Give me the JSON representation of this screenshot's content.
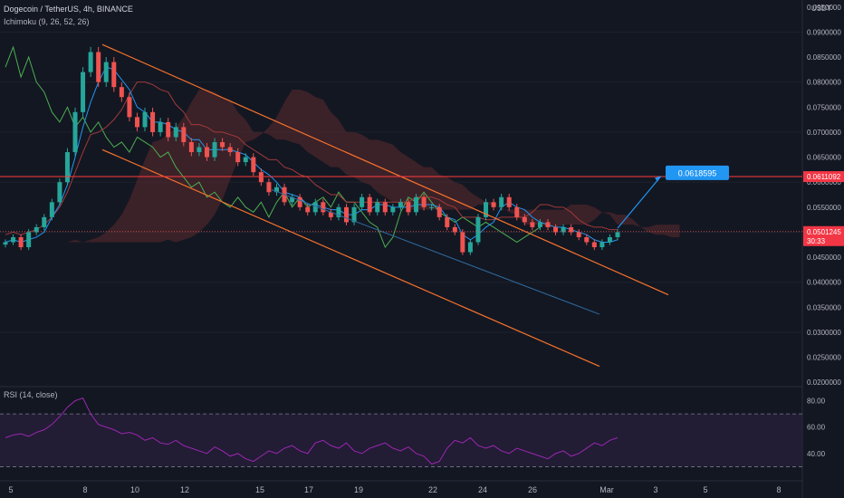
{
  "header": {
    "symbol_line": "Dogecoin / TetherUS, 4h, BINANCE",
    "indicator_line": "Ichimoku (9, 26, 52, 26)",
    "rsi_label": "RSI (14, close)"
  },
  "colors": {
    "background": "#131722",
    "up": "#26a69a",
    "down": "#ef5350",
    "channel": "#f7722c",
    "target": "#2196f3",
    "resistance": "#ff3b3b",
    "rsi_line": "#9c27b0",
    "rsi_band": "#2a1f3d"
  },
  "chart_data": [
    {
      "type": "candlestick",
      "price_axis_unit": "USDT",
      "ylim": [
        0.0195,
        0.0955
      ],
      "y_ticks": [
        "0.0950000",
        "0.0900000",
        "0.0850000",
        "0.0800000",
        "0.0750000",
        "0.0700000",
        "0.0650000",
        "0.0600000",
        "0.0550000",
        "0.0500000",
        "0.0450000",
        "0.0400000",
        "0.0350000",
        "0.0300000",
        "0.0250000",
        "0.0200000"
      ],
      "x_ticks": [
        "5",
        "8",
        "10",
        "12",
        "15",
        "17",
        "19",
        "22",
        "24",
        "26",
        "Mar",
        "3",
        "5",
        "8"
      ],
      "close_series": [
        0.048,
        0.049,
        0.047,
        0.05,
        0.051,
        0.053,
        0.056,
        0.06,
        0.066,
        0.074,
        0.082,
        0.086,
        0.08,
        0.084,
        0.079,
        0.077,
        0.073,
        0.071,
        0.074,
        0.07,
        0.072,
        0.069,
        0.071,
        0.068,
        0.066,
        0.067,
        0.065,
        0.068,
        0.067,
        0.066,
        0.064,
        0.065,
        0.062,
        0.06,
        0.058,
        0.059,
        0.056,
        0.057,
        0.055,
        0.054,
        0.056,
        0.054,
        0.053,
        0.055,
        0.052,
        0.055,
        0.057,
        0.054,
        0.056,
        0.054,
        0.055,
        0.056,
        0.054,
        0.057,
        0.055,
        0.055,
        0.053,
        0.051,
        0.05,
        0.046,
        0.048,
        0.053,
        0.056,
        0.055,
        0.057,
        0.055,
        0.053,
        0.052,
        0.051,
        0.052,
        0.051,
        0.05,
        0.051,
        0.05,
        0.049,
        0.048,
        0.047,
        0.048,
        0.049,
        0.05
      ],
      "resistance_level": 0.0611092,
      "current_price": 0.0501245,
      "price_badges": [
        "0.0611092",
        "0.0501245"
      ],
      "countdown": "30:33",
      "target_label": "0.0618595",
      "target_price": 0.0618595,
      "channel_upper": [
        [
          0.0875,
          0.0375
        ]
      ],
      "channel_lower": [
        [
          0.0665,
          0.0232
        ]
      ]
    },
    {
      "type": "line",
      "name": "RSI",
      "ylim": [
        20,
        90
      ],
      "y_ticks": [
        "80.00",
        "60.00",
        "40.00"
      ],
      "band": [
        30,
        70
      ],
      "values": [
        52,
        54,
        55,
        53,
        56,
        58,
        62,
        68,
        75,
        80,
        82,
        70,
        62,
        60,
        58,
        55,
        56,
        54,
        50,
        52,
        48,
        47,
        50,
        46,
        44,
        42,
        40,
        45,
        42,
        38,
        40,
        36,
        34,
        38,
        42,
        40,
        44,
        46,
        42,
        40,
        48,
        50,
        46,
        44,
        48,
        42,
        40,
        44,
        46,
        48,
        44,
        42,
        45,
        40,
        38,
        32,
        34,
        44,
        50,
        48,
        52,
        46,
        44,
        46,
        42,
        40,
        44,
        42,
        40,
        38,
        36,
        40,
        42,
        38,
        40,
        44,
        48,
        46,
        50,
        52
      ]
    }
  ]
}
